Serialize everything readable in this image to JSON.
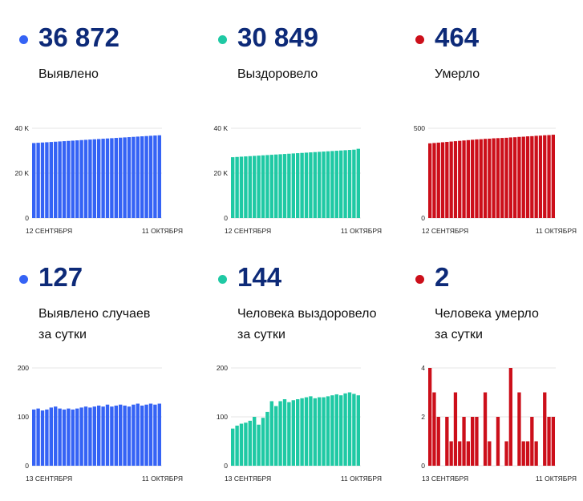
{
  "colors": {
    "blue": "#3563f5",
    "green": "#1fc9a4",
    "red": "#cc0f1a"
  },
  "panels": [
    {
      "id": "p1",
      "value": "36 872",
      "label": [
        "Выявлено"
      ],
      "color": "blue"
    },
    {
      "id": "p2",
      "value": "30 849",
      "label": [
        "Выздоровело"
      ],
      "color": "green"
    },
    {
      "id": "p3",
      "value": "464",
      "label": [
        "Умерло"
      ],
      "color": "red"
    },
    {
      "id": "p4",
      "value": "127",
      "label": [
        "Выявлено случаев",
        "за сутки"
      ],
      "color": "blue"
    },
    {
      "id": "p5",
      "value": "144",
      "label": [
        "Человека выздоровело",
        "за сутки"
      ],
      "color": "green"
    },
    {
      "id": "p6",
      "value": "2",
      "label": [
        "Человека умерло",
        "за сутки"
      ],
      "color": "red"
    }
  ],
  "chart_data": [
    {
      "type": "bar",
      "color": "blue",
      "ylim": [
        0,
        40000
      ],
      "yticks": [
        0,
        20000,
        40000
      ],
      "yticklabels": [
        "0",
        "20 K",
        "40 K"
      ],
      "xlabels": [
        "12 СЕНТЯБРЯ",
        "11 ОКТЯБРЯ"
      ],
      "values": [
        33410,
        33530,
        33650,
        33770,
        33890,
        34010,
        34130,
        34250,
        34370,
        34490,
        34610,
        34730,
        34850,
        34970,
        35090,
        35210,
        35330,
        35450,
        35570,
        35690,
        35810,
        35930,
        36050,
        36170,
        36290,
        36410,
        36530,
        36650,
        36770,
        36872
      ]
    },
    {
      "type": "bar",
      "color": "green",
      "ylim": [
        0,
        40000
      ],
      "yticks": [
        0,
        20000,
        40000
      ],
      "yticklabels": [
        "0",
        "20 K",
        "40 K"
      ],
      "xlabels": [
        "12 СЕНТЯБРЯ",
        "11 ОКТЯБРЯ"
      ],
      "values": [
        27100,
        27220,
        27340,
        27460,
        27580,
        27700,
        27820,
        27940,
        28060,
        28180,
        28300,
        28420,
        28540,
        28660,
        28780,
        28900,
        29020,
        29140,
        29260,
        29380,
        29500,
        29620,
        29740,
        29860,
        29980,
        30100,
        30220,
        30340,
        30460,
        30849
      ]
    },
    {
      "type": "bar",
      "color": "red",
      "ylim": [
        0,
        500
      ],
      "yticks": [
        0,
        500
      ],
      "yticklabels": [
        "0",
        "500"
      ],
      "xlabels": [
        "12 СЕНТЯБРЯ",
        "11 ОКТЯБРЯ"
      ],
      "values": [
        416,
        418,
        420,
        422,
        424,
        426,
        428,
        430,
        432,
        434,
        436,
        438,
        439,
        441,
        442,
        444,
        445,
        446,
        447,
        449,
        450,
        452,
        453,
        455,
        456,
        458,
        459,
        461,
        462,
        464
      ]
    },
    {
      "type": "bar",
      "color": "blue",
      "ylim": [
        0,
        200
      ],
      "yticks": [
        0,
        100,
        200
      ],
      "yticklabels": [
        "0",
        "100",
        "200"
      ],
      "xlabels": [
        "13 СЕНТЯБРЯ",
        "11 ОКТЯБРЯ"
      ],
      "values": [
        115,
        117,
        113,
        115,
        119,
        121,
        117,
        115,
        117,
        115,
        117,
        119,
        121,
        119,
        121,
        123,
        121,
        125,
        121,
        123,
        125,
        123,
        121,
        125,
        127,
        123,
        125,
        127,
        125,
        127
      ]
    },
    {
      "type": "bar",
      "color": "green",
      "ylim": [
        0,
        200
      ],
      "yticks": [
        0,
        100,
        200
      ],
      "yticklabels": [
        "0",
        "100",
        "200"
      ],
      "xlabels": [
        "13 СЕНТЯБРЯ",
        "11 ОКТЯБРЯ"
      ],
      "values": [
        76,
        82,
        86,
        88,
        92,
        100,
        84,
        98,
        110,
        132,
        122,
        132,
        136,
        130,
        134,
        136,
        138,
        140,
        142,
        138,
        140,
        140,
        142,
        144,
        146,
        144,
        148,
        150,
        147,
        144
      ]
    },
    {
      "type": "bar",
      "color": "red",
      "ylim": [
        0,
        4
      ],
      "yticks": [
        0,
        2,
        4
      ],
      "yticklabels": [
        "0",
        "2",
        "4"
      ],
      "xlabels": [
        "13 СЕНТЯБРЯ",
        "11 ОКТЯБРЯ"
      ],
      "values": [
        4,
        3,
        2,
        0,
        2,
        1,
        3,
        1,
        2,
        1,
        2,
        2,
        0,
        3,
        1,
        0,
        2,
        0,
        1,
        4,
        0,
        3,
        1,
        1,
        2,
        1,
        0,
        3,
        2,
        2
      ]
    }
  ]
}
